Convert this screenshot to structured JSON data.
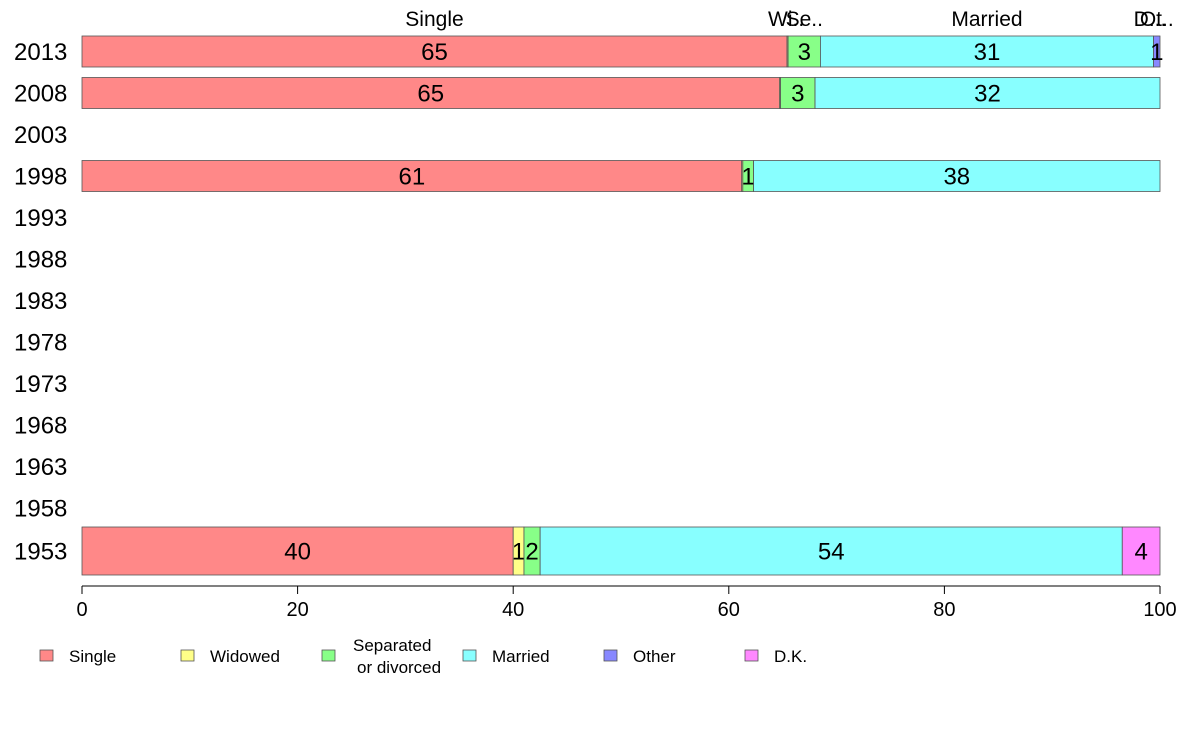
{
  "chart_data": {
    "type": "bar",
    "orientation": "horizontal",
    "stacked": true,
    "categories": [
      "2013",
      "2008",
      "2003",
      "1998",
      "1993",
      "1988",
      "1983",
      "1978",
      "1973",
      "1968",
      "1963",
      "1958",
      "1953"
    ],
    "series": [
      {
        "name": "Single",
        "color": "#ff8888",
        "values": [
          65.4,
          64.7,
          null,
          61.2,
          null,
          null,
          null,
          null,
          null,
          null,
          null,
          null,
          40.0
        ],
        "labels": [
          "65",
          "65",
          "",
          "61",
          "",
          "",
          "",
          "",
          "",
          "",
          "",
          "",
          "40"
        ]
      },
      {
        "name": "Widowed",
        "color": "#ffff88",
        "values": [
          0.1,
          0.1,
          null,
          0.1,
          null,
          null,
          null,
          null,
          null,
          null,
          null,
          null,
          1.0
        ],
        "labels": [
          "",
          "",
          "",
          "",
          "",
          "",
          "",
          "",
          "",
          "",
          "",
          "",
          "1"
        ]
      },
      {
        "name": "Separated or divorced",
        "color": "#88ff88",
        "values": [
          3.0,
          3.2,
          null,
          1.0,
          null,
          null,
          null,
          null,
          null,
          null,
          null,
          null,
          1.5
        ],
        "labels": [
          "3",
          "3",
          "",
          "1",
          "",
          "",
          "",
          "",
          "",
          "",
          "",
          "",
          "2"
        ]
      },
      {
        "name": "Married",
        "color": "#88ffff",
        "values": [
          30.9,
          32.0,
          null,
          37.7,
          null,
          null,
          null,
          null,
          null,
          null,
          null,
          null,
          54.0
        ],
        "labels": [
          "31",
          "32",
          "",
          "38",
          "",
          "",
          "",
          "",
          "",
          "",
          "",
          "",
          "54"
        ]
      },
      {
        "name": "Other",
        "color": "#8888ff",
        "values": [
          0.6,
          0.0,
          null,
          0.0,
          null,
          null,
          null,
          null,
          null,
          null,
          null,
          null,
          0.0
        ],
        "labels": [
          "1",
          "",
          "",
          "",
          "",
          "",
          "",
          "",
          "",
          "",
          "",
          "",
          ""
        ]
      },
      {
        "name": "D.K.",
        "color": "#ff88ff",
        "values": [
          0.0,
          0.0,
          null,
          0.0,
          null,
          null,
          null,
          null,
          null,
          null,
          null,
          null,
          3.5
        ],
        "labels": [
          "",
          "",
          "",
          "",
          "",
          "",
          "",
          "",
          "",
          "",
          "",
          "",
          "4"
        ]
      }
    ],
    "top_labels": [
      "Single",
      "Wi..",
      "Se..",
      "Married",
      "Ot..",
      "D..."
    ],
    "legend": [
      {
        "name": "Single",
        "color": "#ff8888"
      },
      {
        "name": "Widowed",
        "color": "#ffff88"
      },
      {
        "name": "Separated",
        "name_line2": "or divorced",
        "color": "#88ff88"
      },
      {
        "name": "Married",
        "color": "#88ffff"
      },
      {
        "name": "Other",
        "color": "#8888ff"
      },
      {
        "name": "D.K.",
        "color": "#ff88ff"
      }
    ],
    "xlim": [
      0,
      100
    ],
    "xticks": [
      0,
      20,
      40,
      60,
      80,
      100
    ],
    "legend_position": "bottom",
    "grid": false
  }
}
